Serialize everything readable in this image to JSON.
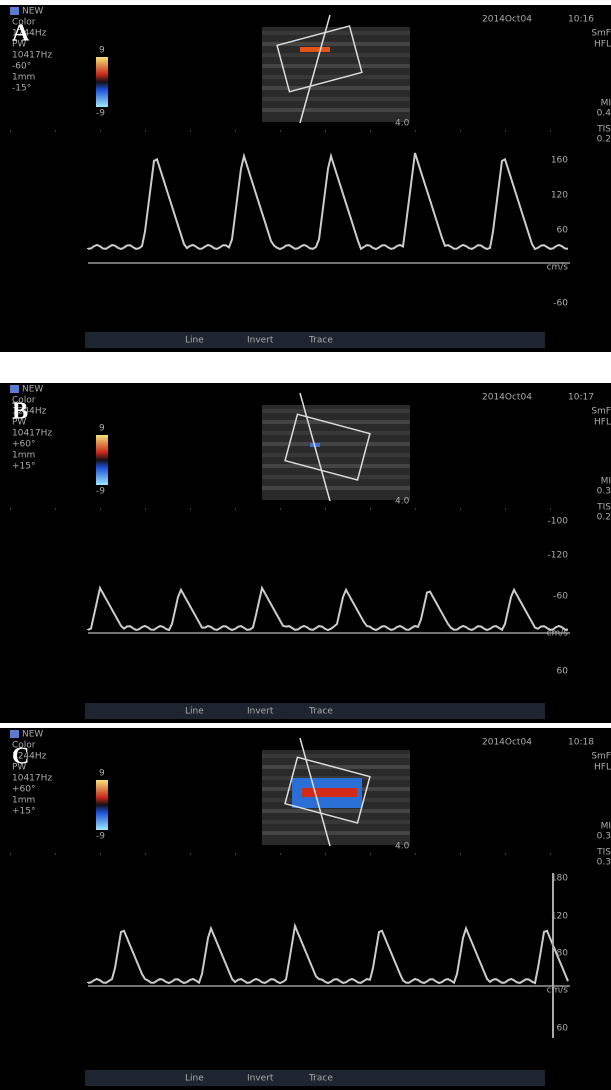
{
  "panels": [
    {
      "label": "A",
      "mode": "NEW",
      "settings": [
        "Color",
        "1244Hz",
        "PW",
        "10417Hz",
        "-60°",
        "1mm",
        "-15°"
      ],
      "colorbar_max": "9",
      "colorbar_min": "-9",
      "date": "2014Oct04",
      "time": "10:16",
      "side": [
        "SmF",
        "HFL",
        "MI",
        "0.4",
        "TIS",
        "0.2"
      ],
      "depth": "4.0",
      "scale": [
        "160",
        "120",
        "60",
        "cm/s",
        "-60"
      ],
      "toolbar": [
        "Line",
        "Invert",
        "Trace"
      ]
    },
    {
      "label": "B",
      "mode": "NEW",
      "settings": [
        "Color",
        "1244Hz",
        "PW",
        "10417Hz",
        "+60°",
        "1mm",
        "+15°"
      ],
      "colorbar_max": "9",
      "colorbar_min": "-9",
      "date": "2014Oct04",
      "time": "10:17",
      "side": [
        "SmF",
        "HFL",
        "MI",
        "0.3",
        "TIS",
        "0.2"
      ],
      "depth": "4.0",
      "scale": [
        "-100",
        "-120",
        "-60",
        "cm/s",
        "60"
      ],
      "toolbar": [
        "Line",
        "Invert",
        "Trace"
      ]
    },
    {
      "label": "C",
      "mode": "NEW",
      "settings": [
        "Color",
        "1244Hz",
        "PW",
        "10417Hz",
        "+60°",
        "1mm",
        "+15°"
      ],
      "colorbar_max": "9",
      "colorbar_min": "-9",
      "date": "2014Oct04",
      "time": "10:18",
      "side": [
        "SmF",
        "HFL",
        "MI",
        "0.3",
        "TIS",
        "0.3"
      ],
      "depth": "4.0",
      "scale": [
        "180",
        "120",
        "80",
        "cm/s",
        "60"
      ],
      "toolbar": [
        "Line",
        "Invert",
        "Trace"
      ]
    }
  ]
}
